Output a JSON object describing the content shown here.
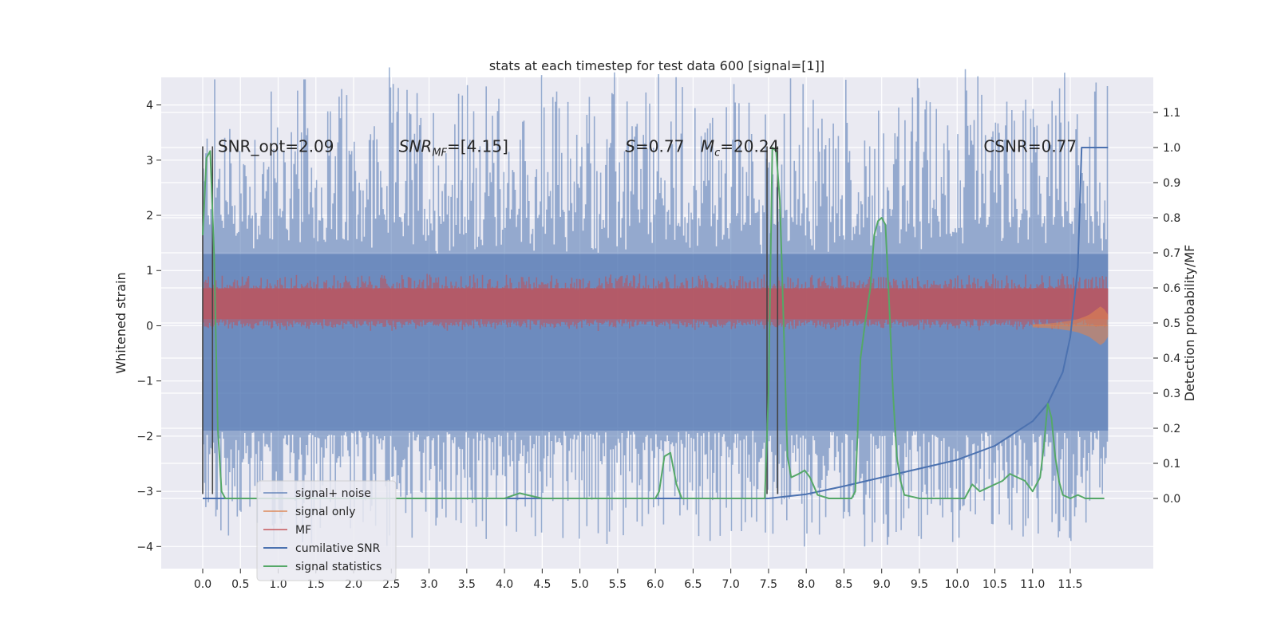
{
  "chart_data": {
    "type": "line",
    "title": "stats at each timestep for test data 600 [signal=[1]]",
    "xlabel": "",
    "ylabel": "Whitened strain",
    "y2label": "Detection probability/MF",
    "xlim": [
      -0.55,
      12.6
    ],
    "ylim": [
      -4.4,
      4.5
    ],
    "y2lim": [
      -0.2,
      1.2
    ],
    "xticks": [
      0.0,
      0.5,
      1.0,
      1.5,
      2.0,
      2.5,
      3.0,
      3.5,
      4.0,
      4.5,
      5.0,
      5.5,
      6.0,
      6.5,
      7.0,
      7.5,
      8.0,
      8.5,
      9.0,
      9.5,
      10.0,
      10.5,
      11.0,
      11.5
    ],
    "xtick_labels": [
      "0.0",
      "0.5",
      "1.0",
      "1.5",
      "2.0",
      "2.5",
      "3.0",
      "3.5",
      "4.0",
      "4.5",
      "5.0",
      "5.5",
      "6.0",
      "6.5",
      "7.0",
      "7.5",
      "8.0",
      "8.5",
      "9.0",
      "9.5",
      "10.0",
      "10.5",
      "11.0",
      "11.5"
    ],
    "yticks": [
      -4,
      -3,
      -2,
      -1,
      0,
      1,
      2,
      3,
      4
    ],
    "ytick_labels": [
      "−4",
      "−3",
      "−2",
      "−1",
      "0",
      "1",
      "2",
      "3",
      "4"
    ],
    "y2ticks": [
      0.0,
      0.1,
      0.2,
      0.3,
      0.4,
      0.5,
      0.6,
      0.7,
      0.8,
      0.9,
      1.0,
      1.1
    ],
    "y2tick_labels": [
      "0.0",
      "0.1",
      "0.2",
      "0.3",
      "0.4",
      "0.5",
      "0.6",
      "0.7",
      "0.8",
      "0.9",
      "1.0",
      "1.1"
    ],
    "grid": true,
    "legend_position": "lower-left",
    "annotations": [
      {
        "text": "SNR_opt=2.09",
        "x": 0.2,
        "y": 3.15
      },
      {
        "text": "SNR_MF=[4.15]",
        "x": 2.6,
        "y": 3.15
      },
      {
        "text": "S=0.77",
        "x": 5.6,
        "y": 3.15
      },
      {
        "text": "M_c=20.24",
        "x": 6.6,
        "y": 3.15
      },
      {
        "text": "CSNR=0.77",
        "x": 10.35,
        "y": 3.15
      }
    ],
    "series": [
      {
        "name": "signal+ noise",
        "color": "#4c72b0",
        "axis": "left",
        "style": "noise-band",
        "x_range": [
          0.0,
          12.0
        ],
        "center": -0.3,
        "body_half_width": 1.6,
        "peak_range": [
          2.0,
          4.1
        ],
        "trough_range": [
          -2.0,
          -3.95
        ]
      },
      {
        "name": "signal only",
        "color": "#dd8452",
        "axis": "left",
        "style": "chirp",
        "x": [
          11.0,
          11.2,
          11.35,
          11.5,
          11.6,
          11.7,
          11.75,
          11.8,
          11.85,
          11.9,
          11.95,
          12.0
        ],
        "envelope": [
          0.03,
          0.04,
          0.06,
          0.09,
          0.12,
          0.17,
          0.2,
          0.25,
          0.3,
          0.35,
          0.3,
          0.2
        ]
      },
      {
        "name": "MF",
        "color": "#c44e52",
        "axis": "left",
        "style": "noise-band",
        "x_range": [
          0.0,
          12.0
        ],
        "center": 0.4,
        "body_half_width": 0.28,
        "peak_range": [
          0.65,
          0.95
        ],
        "trough_range": [
          0.0,
          0.02
        ]
      },
      {
        "name": "cumilative SNR",
        "color": "#4c72b0",
        "axis": "right",
        "style": "line",
        "x": [
          0.0,
          7.5,
          8.0,
          8.5,
          9.0,
          9.5,
          10.0,
          10.5,
          11.0,
          11.2,
          11.4,
          11.5,
          11.6,
          11.65,
          11.7,
          12.0
        ],
        "y": [
          0.0,
          0.0,
          0.012,
          0.035,
          0.06,
          0.085,
          0.11,
          0.15,
          0.22,
          0.27,
          0.36,
          0.46,
          0.66,
          1.0,
          1.0,
          1.0
        ]
      },
      {
        "name": "signal statistics",
        "color": "#55a868",
        "axis": "right",
        "style": "line",
        "x": [
          0.0,
          0.05,
          0.1,
          0.15,
          0.2,
          0.25,
          0.3,
          1.0,
          2.0,
          2.6,
          3.0,
          4.0,
          4.2,
          4.3,
          4.5,
          5.0,
          6.0,
          6.05,
          6.12,
          6.2,
          6.28,
          6.35,
          7.0,
          7.45,
          7.5,
          7.55,
          7.6,
          7.65,
          7.7,
          7.75,
          7.8,
          7.9,
          7.98,
          8.05,
          8.15,
          8.3,
          8.6,
          8.65,
          8.72,
          8.78,
          8.85,
          8.9,
          8.95,
          9.0,
          9.05,
          9.1,
          9.15,
          9.2,
          9.25,
          9.3,
          9.5,
          9.8,
          10.1,
          10.2,
          10.3,
          10.4,
          10.5,
          10.6,
          10.7,
          10.8,
          10.9,
          11.0,
          11.1,
          11.15,
          11.2,
          11.25,
          11.3,
          11.35,
          11.4,
          11.5,
          11.6,
          11.7,
          11.8,
          11.9,
          11.95
        ],
        "y": [
          0.75,
          0.97,
          0.99,
          0.7,
          0.2,
          0.02,
          0.0,
          0.0,
          0.0,
          0.0,
          0.0,
          0.0,
          0.015,
          0.01,
          0.0,
          0.0,
          0.0,
          0.02,
          0.12,
          0.13,
          0.04,
          0.0,
          0.0,
          0.0,
          0.3,
          1.0,
          0.99,
          0.85,
          0.5,
          0.12,
          0.06,
          0.07,
          0.08,
          0.06,
          0.01,
          0.0,
          0.0,
          0.02,
          0.4,
          0.5,
          0.6,
          0.75,
          0.79,
          0.8,
          0.78,
          0.55,
          0.3,
          0.12,
          0.05,
          0.01,
          0.0,
          0.0,
          0.0,
          0.04,
          0.02,
          0.03,
          0.04,
          0.05,
          0.07,
          0.06,
          0.05,
          0.02,
          0.06,
          0.15,
          0.27,
          0.23,
          0.12,
          0.05,
          0.01,
          0.0,
          0.01,
          0.0,
          0.0,
          0.0,
          0.0
        ]
      }
    ],
    "vertical_lines": [
      {
        "x": 0.0,
        "y_bottom": -3.05,
        "y_top": 3.25,
        "color": "#444444"
      },
      {
        "x": 0.13,
        "y_bottom": -3.05,
        "y_top": 3.25,
        "color": "#444444"
      },
      {
        "x": 7.48,
        "y_bottom": -3.05,
        "y_top": 3.25,
        "color": "#444444"
      },
      {
        "x": 7.62,
        "y_bottom": -3.05,
        "y_top": 3.25,
        "color": "#444444"
      }
    ]
  }
}
